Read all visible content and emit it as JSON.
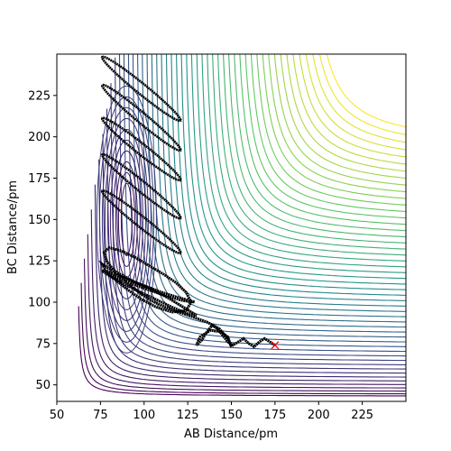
{
  "chart_data": {
    "type": "contour",
    "title": "",
    "xlabel": "AB Distance/pm",
    "ylabel": "BC Distance/pm",
    "xlim": [
      50,
      250
    ],
    "ylim": [
      40,
      250
    ],
    "xticks": [
      50,
      75,
      100,
      125,
      150,
      175,
      200,
      225
    ],
    "yticks": [
      50,
      75,
      100,
      125,
      150,
      175,
      200,
      225
    ],
    "grid": false,
    "colormap": [
      "#440154",
      "#3b528b",
      "#21918c",
      "#5ec962",
      "#fde725"
    ],
    "surface": {
      "description_free": true,
      "well_bottom_ab": 75,
      "well_bottom_bc": 75,
      "level_count": 50
    },
    "trajectory": {
      "color": "#000000",
      "points": [
        [
          175,
          74
        ],
        [
          172,
          76
        ],
        [
          169,
          78
        ],
        [
          166,
          76
        ],
        [
          163,
          73
        ],
        [
          160,
          75
        ],
        [
          157,
          78
        ],
        [
          154,
          76
        ],
        [
          151,
          74
        ],
        [
          148,
          76
        ],
        [
          145,
          80
        ],
        [
          142,
          84
        ],
        [
          139,
          86
        ],
        [
          136,
          82
        ],
        [
          133,
          77
        ],
        [
          130,
          74
        ],
        [
          132,
          79
        ],
        [
          138,
          83
        ],
        [
          144,
          82
        ],
        [
          148,
          79
        ],
        [
          150,
          73
        ],
        [
          148,
          78
        ],
        [
          143,
          84
        ],
        [
          136,
          88
        ],
        [
          128,
          91
        ],
        [
          120,
          94
        ],
        [
          112,
          97
        ],
        [
          104,
          101
        ],
        [
          97,
          106
        ],
        [
          90,
          112
        ],
        [
          84,
          118
        ],
        [
          79,
          124
        ],
        [
          77,
          130
        ],
        [
          80,
          133
        ],
        [
          87,
          131
        ],
        [
          95,
          127
        ],
        [
          103,
          122
        ],
        [
          111,
          117
        ],
        [
          118,
          112
        ],
        [
          124,
          106
        ],
        [
          127,
          100
        ],
        [
          124,
          95
        ],
        [
          116,
          94
        ],
        [
          107,
          97
        ],
        [
          98,
          102
        ],
        [
          90,
          108
        ],
        [
          83,
          114
        ],
        [
          78,
          119
        ],
        [
          76,
          123
        ],
        [
          79,
          121
        ],
        [
          86,
          117
        ],
        [
          95,
          112
        ],
        [
          104,
          108
        ],
        [
          113,
          103
        ],
        [
          121,
          98
        ],
        [
          127,
          94
        ],
        [
          130,
          92
        ],
        [
          125,
          93
        ],
        [
          116,
          97
        ],
        [
          106,
          102
        ],
        [
          96,
          107
        ],
        [
          87,
          112
        ],
        [
          80,
          116
        ],
        [
          76,
          119
        ],
        [
          81,
          118
        ],
        [
          90,
          114
        ],
        [
          100,
          110
        ],
        [
          110,
          106
        ],
        [
          119,
          103
        ],
        [
          126,
          101
        ],
        [
          129,
          100
        ],
        [
          122,
          101
        ],
        [
          112,
          104
        ],
        [
          101,
          108
        ],
        [
          91,
          112
        ],
        [
          82,
          116
        ],
        [
          77,
          119
        ]
      ],
      "loops": [
        {
          "ab_min": 76,
          "ab_max": 121,
          "bc_low": 130,
          "bc_high": 167
        },
        {
          "ab_min": 76,
          "ab_max": 121,
          "bc_low": 151,
          "bc_high": 189
        },
        {
          "ab_min": 76,
          "ab_max": 121,
          "bc_low": 174,
          "bc_high": 211
        },
        {
          "ab_min": 76,
          "ab_max": 121,
          "bc_low": 192,
          "bc_high": 231
        },
        {
          "ab_min": 76,
          "ab_max": 121,
          "bc_low": 210,
          "bc_high": 248
        }
      ]
    },
    "marker": {
      "symbol": "x",
      "color": "#ff0000",
      "x": 175,
      "y": 74
    }
  }
}
